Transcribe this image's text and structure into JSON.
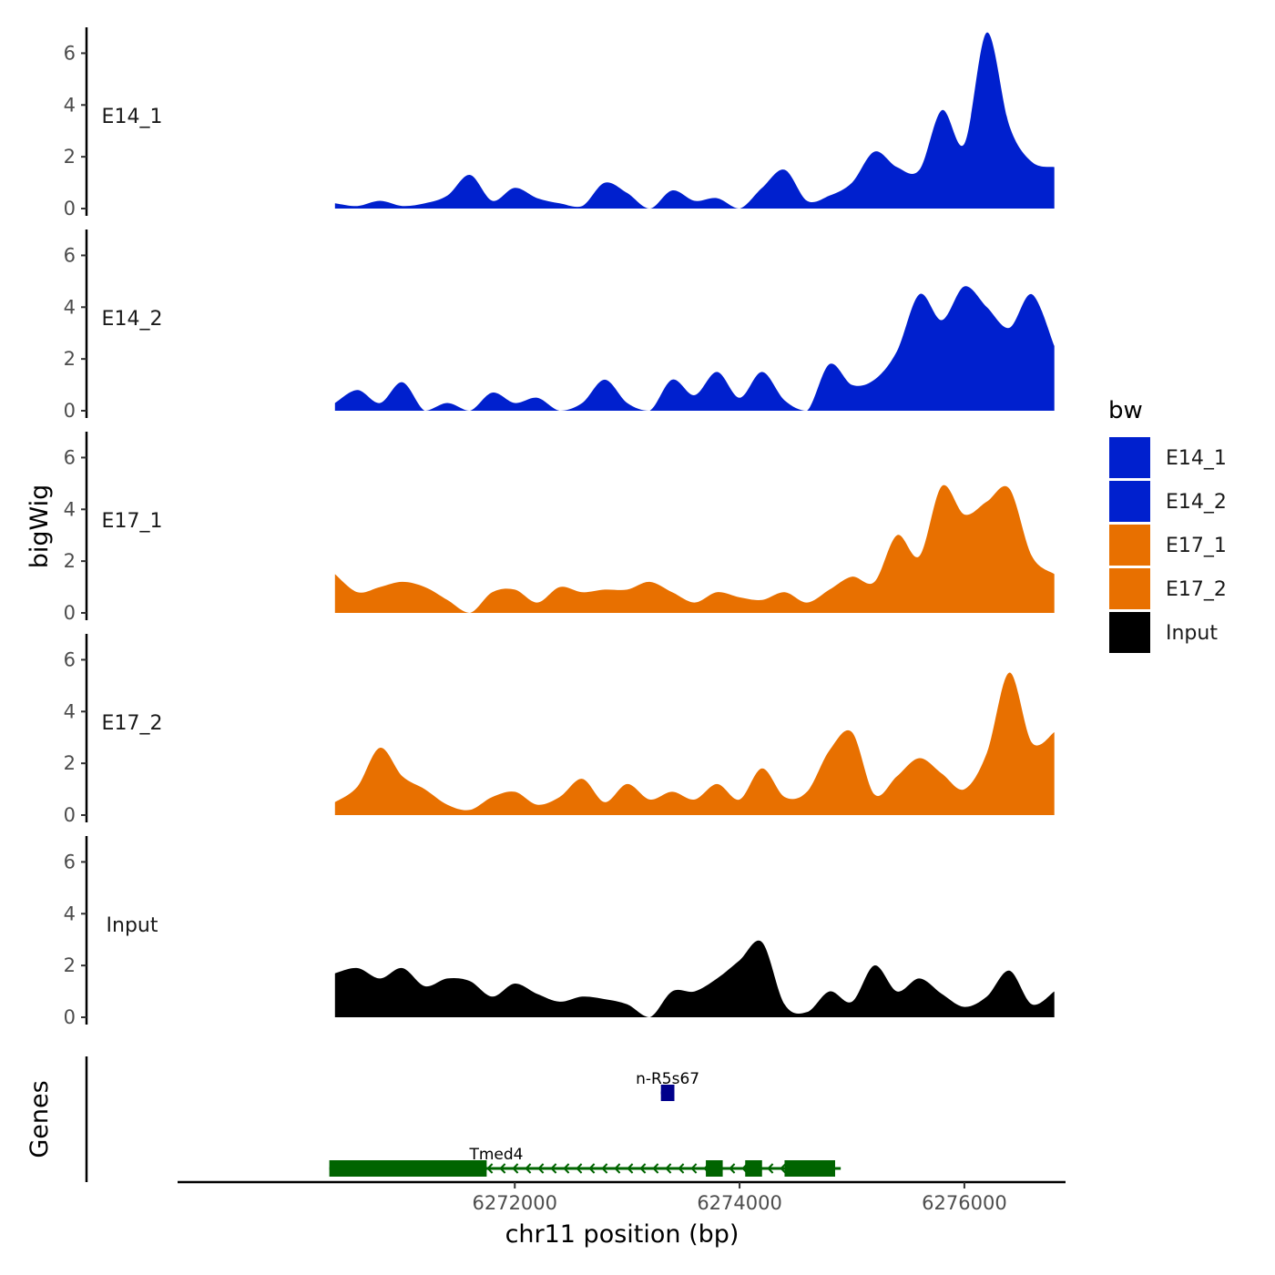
{
  "chart_data": {
    "type": "area",
    "ylabel": "bigWig",
    "xlabel": "chr11 position (bp)",
    "genes_label": "Genes",
    "xlim": [
      6269000,
      6276900
    ],
    "ylim": [
      0,
      7
    ],
    "y_ticks": [
      0,
      2,
      4,
      6
    ],
    "x_ticks": [
      6272000,
      6274000,
      6276000
    ],
    "x_tick_labels": [
      "6272000",
      "6274000",
      "6276000"
    ],
    "x": [
      6270400,
      6270600,
      6270800,
      6271000,
      6271200,
      6271400,
      6271600,
      6271800,
      6272000,
      6272200,
      6272400,
      6272600,
      6272800,
      6273000,
      6273200,
      6273400,
      6273600,
      6273800,
      6274000,
      6274200,
      6274400,
      6274600,
      6274800,
      6275000,
      6275200,
      6275400,
      6275600,
      6275800,
      6276000,
      6276200,
      6276400,
      6276600,
      6276800
    ],
    "series": [
      {
        "name": "E14_1",
        "color": "#0020CE",
        "values": [
          0.2,
          0.1,
          0.3,
          0.1,
          0.2,
          0.5,
          1.3,
          0.3,
          0.8,
          0.4,
          0.2,
          0.1,
          1.0,
          0.6,
          0.0,
          0.7,
          0.3,
          0.4,
          0.0,
          0.8,
          1.5,
          0.3,
          0.5,
          1.0,
          2.2,
          1.6,
          1.5,
          3.8,
          2.5,
          6.8,
          3.2,
          1.8,
          1.6
        ]
      },
      {
        "name": "E14_2",
        "color": "#0020CE",
        "values": [
          0.3,
          0.8,
          0.3,
          1.1,
          0.0,
          0.3,
          0.0,
          0.7,
          0.3,
          0.5,
          0.0,
          0.3,
          1.2,
          0.3,
          0.0,
          1.2,
          0.6,
          1.5,
          0.5,
          1.5,
          0.4,
          0.0,
          1.8,
          1.0,
          1.2,
          2.3,
          4.5,
          3.5,
          4.8,
          4.0,
          3.2,
          4.5,
          2.5
        ]
      },
      {
        "name": "E17_1",
        "color": "#E87000",
        "values": [
          1.5,
          0.8,
          1.0,
          1.2,
          1.0,
          0.5,
          0.0,
          0.8,
          0.9,
          0.4,
          1.0,
          0.8,
          0.9,
          0.9,
          1.2,
          0.8,
          0.4,
          0.8,
          0.6,
          0.5,
          0.8,
          0.4,
          0.9,
          1.4,
          1.2,
          3.0,
          2.2,
          4.9,
          3.8,
          4.3,
          4.8,
          2.2,
          1.5
        ]
      },
      {
        "name": "E17_2",
        "color": "#E87000",
        "values": [
          0.5,
          1.1,
          2.6,
          1.5,
          1.0,
          0.4,
          0.2,
          0.7,
          0.9,
          0.4,
          0.7,
          1.4,
          0.5,
          1.2,
          0.6,
          0.9,
          0.6,
          1.2,
          0.6,
          1.8,
          0.7,
          0.9,
          2.5,
          3.2,
          0.8,
          1.5,
          2.2,
          1.6,
          1.0,
          2.4,
          5.5,
          2.8,
          3.2
        ]
      },
      {
        "name": "Input",
        "color": "#000000",
        "values": [
          1.7,
          1.9,
          1.5,
          1.9,
          1.2,
          1.5,
          1.4,
          0.8,
          1.3,
          0.9,
          0.6,
          0.8,
          0.7,
          0.5,
          0.0,
          1.0,
          1.0,
          1.5,
          2.2,
          2.9,
          0.5,
          0.2,
          1.0,
          0.6,
          2.0,
          1.0,
          1.5,
          0.9,
          0.4,
          0.8,
          1.8,
          0.5,
          1.0
        ]
      }
    ],
    "legend": {
      "title": "bw",
      "position": "right",
      "entries": [
        {
          "label": "E14_1",
          "color": "#0020CE"
        },
        {
          "label": "E14_2",
          "color": "#0020CE"
        },
        {
          "label": "E17_1",
          "color": "#E87000"
        },
        {
          "label": "E17_2",
          "color": "#E87000"
        },
        {
          "label": "Input",
          "color": "#000000"
        }
      ]
    },
    "genes": [
      {
        "name": "n-R5s67",
        "color": "#00008B",
        "start": 6273300,
        "end": 6273420,
        "row": 1,
        "exons": [
          [
            6273300,
            6273420
          ]
        ]
      },
      {
        "name": "Tmed4",
        "color": "#006400",
        "start": 6270350,
        "end": 6274900,
        "row": 2,
        "strand": "-",
        "exons": [
          [
            6270350,
            6271750
          ],
          [
            6273700,
            6273850
          ],
          [
            6274050,
            6274200
          ],
          [
            6274400,
            6274850
          ]
        ]
      }
    ]
  }
}
